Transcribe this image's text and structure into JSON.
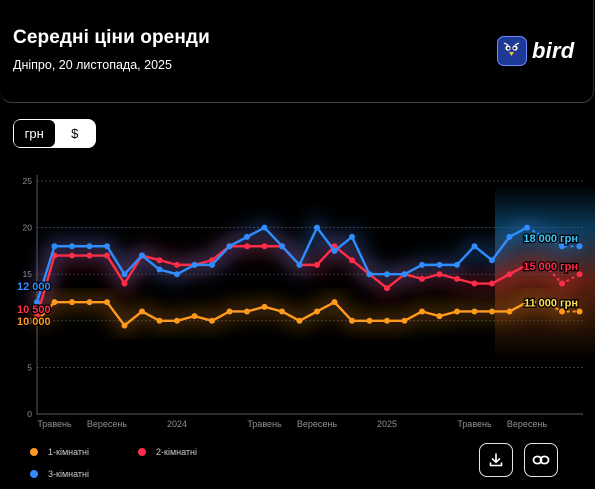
{
  "header": {
    "title": "Середні ціни оренди",
    "subtitle": "Дніпро, 20 листопада, 2025",
    "logo_text": "bird"
  },
  "currency_toggle": {
    "options": [
      "грн",
      "$"
    ],
    "selected": "грн"
  },
  "chart_data": {
    "type": "line",
    "title": "",
    "xlabel": "",
    "ylabel": "",
    "ylim": [
      0,
      25
    ],
    "y_ticks": [
      "0",
      "5",
      "10",
      "15",
      "20",
      "25"
    ],
    "y_unit": "тис. грн",
    "grid": true,
    "x_tick_labels": [
      "Травень",
      "Вересень",
      "2024",
      "Травень",
      "Вересень",
      "2025",
      "Травень",
      "Вересень"
    ],
    "x_tick_positions": [
      1,
      4,
      8,
      13,
      16,
      20,
      25,
      28
    ],
    "series": [
      {
        "name": "1-кімнатні",
        "color": "#ff9a1f",
        "values": [
          10.0,
          12.0,
          12.0,
          12.0,
          12.0,
          9.5,
          11.0,
          10.0,
          10.0,
          10.5,
          10.0,
          11.0,
          11.0,
          11.5,
          11.0,
          10.0,
          11.0,
          12.0,
          10.0,
          10.0,
          10.0,
          10.0,
          11.0,
          10.5,
          11.0,
          11.0,
          11.0,
          11.0,
          12.0,
          12.0,
          11.0,
          11.0
        ],
        "start_label": "10 000",
        "end_label": "11 000 грн"
      },
      {
        "name": "2-кімнатні",
        "color": "#ff2d48",
        "values": [
          10.5,
          17.0,
          17.0,
          17.0,
          17.0,
          14.0,
          17.0,
          16.5,
          16.0,
          16.0,
          16.5,
          18.0,
          18.0,
          18.0,
          18.0,
          16.0,
          16.0,
          18.0,
          16.5,
          15.0,
          13.5,
          15.0,
          14.5,
          15.0,
          14.5,
          14.0,
          14.0,
          15.0,
          16.0,
          16.0,
          14.0,
          15.0
        ],
        "start_label": "10 500",
        "end_label": "15 000 грн"
      },
      {
        "name": "3-кімнатні",
        "color": "#2f8dff",
        "values": [
          12.0,
          18.0,
          18.0,
          18.0,
          18.0,
          15.0,
          17.0,
          15.5,
          15.0,
          16.0,
          16.0,
          18.0,
          19.0,
          20.0,
          18.0,
          16.0,
          20.0,
          17.5,
          19.0,
          15.0,
          15.0,
          15.0,
          16.0,
          16.0,
          16.0,
          18.0,
          16.5,
          19.0,
          20.0,
          19.0,
          18.0,
          18.0
        ],
        "start_label": "12 000",
        "end_label": "18 000 грн"
      }
    ]
  },
  "legend": {
    "items": [
      {
        "label": "1-кімнатні",
        "color": "#ff9a1f"
      },
      {
        "label": "2-кімнатні",
        "color": "#ff2d48"
      },
      {
        "label": "3-кімнатні",
        "color": "#2f8dff"
      }
    ]
  },
  "actions": {
    "download_icon": "download-icon",
    "link_icon": "link-icon"
  }
}
